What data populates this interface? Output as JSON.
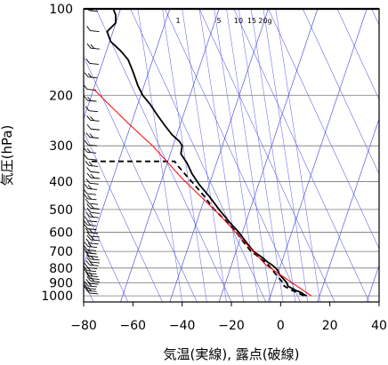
{
  "chart_data": {
    "type": "line",
    "xlabel": "気温(実線), 露点(破線)",
    "ylabel": "気圧(hPa)",
    "xlim": [
      -80,
      40
    ],
    "ylim": [
      1050,
      100
    ],
    "y_scale": "log",
    "x_ticks": [
      -80,
      -60,
      -40,
      -20,
      0,
      20,
      40
    ],
    "y_ticks": [
      100,
      200,
      300,
      400,
      500,
      600,
      700,
      800,
      900,
      1000
    ],
    "mixing_ratio_labels": [
      "1",
      "5",
      "10",
      "15",
      "20g"
    ],
    "series": [
      {
        "style": "solid",
        "color": "#000000",
        "points": [
          [
            10.5,
            1000
          ],
          [
            9.5,
            990
          ],
          [
            8.5,
            975
          ],
          [
            6.5,
            960
          ],
          [
            4.5,
            940
          ],
          [
            3,
            925
          ],
          [
            2.5,
            900
          ],
          [
            1.5,
            880
          ],
          [
            0.5,
            860
          ],
          [
            -0.5,
            840
          ],
          [
            -1,
            820
          ],
          [
            -2,
            800
          ],
          [
            -3.5,
            780
          ],
          [
            -5.5,
            760
          ],
          [
            -7,
            740
          ],
          [
            -9,
            720
          ],
          [
            -11,
            700
          ],
          [
            -14,
            650
          ],
          [
            -17,
            600
          ],
          [
            -21,
            550
          ],
          [
            -25,
            500
          ],
          [
            -29,
            450
          ],
          [
            -33,
            410
          ],
          [
            -36,
            375
          ],
          [
            -38,
            345
          ],
          [
            -40.5,
            320
          ],
          [
            -40,
            300
          ],
          [
            -41,
            290
          ],
          [
            -44,
            275
          ],
          [
            -47,
            255
          ],
          [
            -50,
            235
          ],
          [
            -53,
            215
          ],
          [
            -56,
            200
          ],
          [
            -58,
            185
          ],
          [
            -60,
            165
          ],
          [
            -62,
            150
          ],
          [
            -65,
            140
          ],
          [
            -69,
            130
          ],
          [
            -70.5,
            120
          ],
          [
            -67,
            112
          ],
          [
            -67,
            105
          ],
          [
            -68,
            100
          ]
        ]
      },
      {
        "style": "dashed",
        "color": "#000000",
        "points": [
          [
            9.5,
            1000
          ],
          [
            8.5,
            990
          ],
          [
            7,
            975
          ],
          [
            5,
            960
          ],
          [
            3,
            940
          ],
          [
            1.5,
            925
          ],
          [
            1,
            900
          ],
          [
            0,
            880
          ],
          [
            -1,
            860
          ],
          [
            -2,
            840
          ],
          [
            -3,
            820
          ],
          [
            -4,
            800
          ],
          [
            -5,
            780
          ],
          [
            -6.5,
            760
          ],
          [
            -8.5,
            740
          ],
          [
            -10,
            720
          ],
          [
            -12,
            700
          ],
          [
            -15,
            650
          ],
          [
            -18,
            600
          ],
          [
            -22,
            550
          ],
          [
            -27,
            500
          ],
          [
            -31,
            450
          ],
          [
            -35,
            410
          ],
          [
            -39,
            375
          ],
          [
            -42,
            350
          ],
          [
            -43,
            340
          ],
          [
            -78,
            340
          ]
        ]
      },
      {
        "style": "solid",
        "color": "#ff0000",
        "points": [
          [
            12.5,
            1000
          ],
          [
            -6,
            780
          ],
          [
            -25,
            520
          ],
          [
            -40,
            390
          ],
          [
            -52,
            300
          ],
          [
            -62,
            250
          ],
          [
            -71,
            210
          ],
          [
            -76,
            190
          ]
        ]
      }
    ],
    "wind_barbs": "left-side wind barbs, 100–1000 hPa"
  }
}
